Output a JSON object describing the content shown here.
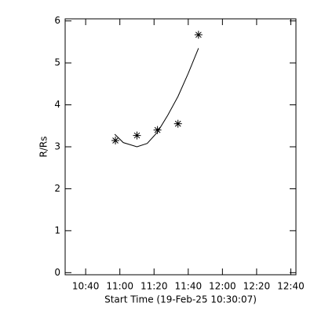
{
  "chart_data": {
    "type": "scatter",
    "x_label": "Start Time (19-Feb-25 10:30:07)",
    "y_label": "R/Rs",
    "series": [
      {
        "type": "scatter",
        "color": "#000000",
        "x": [
          657.4,
          670,
          682,
          694,
          706
        ],
        "values": [
          3.15,
          3.27,
          3.4,
          3.55,
          5.67
        ]
      },
      {
        "type": "line",
        "color": "#000000",
        "x": [
          657,
          662,
          670,
          676,
          682,
          688,
          694,
          700,
          706
        ],
        "values": [
          3.3,
          3.1,
          3.0,
          3.08,
          3.35,
          3.75,
          4.2,
          4.75,
          5.35
        ]
      }
    ],
    "xlim": [
      628,
      763
    ],
    "xticks": [
      {
        "value": 640,
        "label": "10:40"
      },
      {
        "value": 660,
        "label": "11:00"
      },
      {
        "value": 680,
        "label": "11:20"
      },
      {
        "value": 700,
        "label": "11:40"
      },
      {
        "value": 720,
        "label": "12:00"
      },
      {
        "value": 740,
        "label": "12:20"
      },
      {
        "value": 760,
        "label": "12:40"
      }
    ],
    "ylim": [
      -0.05,
      6.05
    ],
    "yticks": [
      0,
      1,
      2,
      3,
      4,
      5,
      6
    ]
  }
}
